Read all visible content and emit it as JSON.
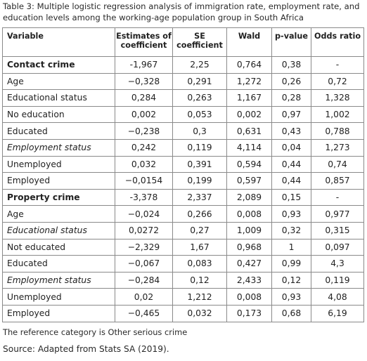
{
  "caption": "Table 3: Multiple logistic regression analysis of immigration rate, employment rate, and education levels among the working-age population group in South Africa",
  "headers": [
    "Variable",
    "Estimates of coefficient",
    "SE coefficient",
    "Wald",
    "p-value",
    "Odds ratio"
  ],
  "rows": [
    {
      "style": "bold",
      "cells": [
        "Contact crime",
        "-1,967",
        "2,25",
        "0,764",
        "0,38",
        "-"
      ]
    },
    {
      "style": "normal",
      "cells": [
        "Age",
        "−0,328",
        "0,291",
        "1,272",
        "0,26",
        "0,72"
      ]
    },
    {
      "style": "normal",
      "cells": [
        "Educational status",
        "0,284",
        "0,263",
        "1,167",
        "0,28",
        "1,328"
      ]
    },
    {
      "style": "normal",
      "cells": [
        "No education",
        "0,002",
        "0,053",
        "0,002",
        "0,97",
        "1,002"
      ]
    },
    {
      "style": "normal",
      "cells": [
        "Educated",
        "−0,238",
        "0,3",
        "0,631",
        "0,43",
        "0,788"
      ]
    },
    {
      "style": "italic",
      "cells": [
        "Employment status",
        "0,242",
        "0,119",
        "4,114",
        "0,04",
        "1,273"
      ]
    },
    {
      "style": "normal",
      "cells": [
        "Unemployed",
        "0,032",
        "0,391",
        "0,594",
        "0,44",
        "0,74"
      ]
    },
    {
      "style": "normal",
      "cells": [
        "Employed",
        "−0,0154",
        "0,199",
        "0,597",
        "0,44",
        "0,857"
      ]
    },
    {
      "style": "bold",
      "cells": [
        "Property crime",
        "-3,378",
        "2,337",
        "2,089",
        "0,15",
        "-"
      ]
    },
    {
      "style": "normal",
      "cells": [
        "Age",
        "−0,024",
        "0,266",
        "0,008",
        "0,93",
        "0,977"
      ]
    },
    {
      "style": "italic",
      "cells": [
        "Educational status",
        "0,0272",
        "0,27",
        "1,009",
        "0,32",
        "0,315"
      ]
    },
    {
      "style": "normal",
      "cells": [
        "Not educated",
        "−2,329",
        "1,67",
        "0,968",
        "1",
        "0,097"
      ]
    },
    {
      "style": "normal",
      "cells": [
        "Educated",
        "−0,067",
        "0,083",
        "0,427",
        "0,99",
        "4,3"
      ]
    },
    {
      "style": "italic",
      "cells": [
        "Employment status",
        "−0,284",
        "0,12",
        "2,433",
        "0,12",
        "0,119"
      ]
    },
    {
      "style": "normal",
      "cells": [
        "Unemployed",
        "0,02",
        "1,212",
        "0,008",
        "0,93",
        "4,08"
      ]
    },
    {
      "style": "normal",
      "cells": [
        "Employed",
        "−0,465",
        "0,032",
        "0,173",
        "0,68",
        "6,19"
      ]
    }
  ],
  "note": "The reference category is Other serious crime",
  "source": "Source: Adapted from Stats SA (2019)."
}
